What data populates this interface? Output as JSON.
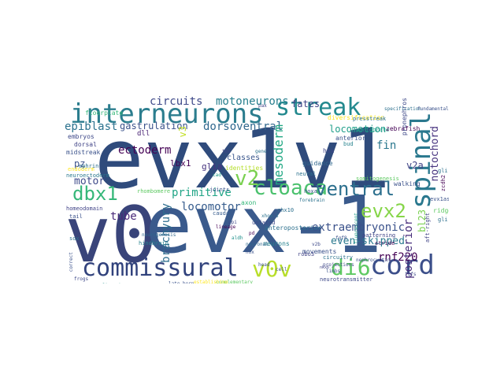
{
  "palette": [
    "#440154",
    "#3b528b",
    "#21918c",
    "#5ec962",
    "#fde725"
  ],
  "words": [
    {
      "text": "evx1v1",
      "color": "#2f4b7c"
    },
    {
      "text": "v0",
      "color": "#39447a"
    },
    {
      "text": "evx-1",
      "color": "#3a5a8c"
    },
    {
      "text": "interneurons",
      "color": "#2b7d8e"
    },
    {
      "text": "streak",
      "color": "#23898e"
    },
    {
      "text": "spinal",
      "color": "#2a788e"
    },
    {
      "text": "commissural",
      "color": "#31427c"
    },
    {
      "text": "v0v",
      "color": "#b8de29"
    },
    {
      "text": "di6",
      "color": "#5ec962"
    },
    {
      "text": "cord",
      "color": "#3c4f8a"
    },
    {
      "text": "cloaca",
      "color": "#4ac16d"
    },
    {
      "text": "ventral",
      "color": "#2d708e"
    },
    {
      "text": "dbx1",
      "color": "#35b779"
    },
    {
      "text": "evx2",
      "color": "#86d549"
    },
    {
      "text": "v2",
      "color": "#7ad151"
    },
    {
      "text": "motoneurons",
      "color": "#277f8e"
    },
    {
      "text": "circuits",
      "color": "#3e4989"
    },
    {
      "text": "fates",
      "color": "#414487"
    },
    {
      "text": "epiblast",
      "color": "#2c728e"
    },
    {
      "text": "gastrulation",
      "color": "#3b528b"
    },
    {
      "text": "dorsoventral",
      "color": "#31688e"
    },
    {
      "text": "locomotion",
      "color": "#1f9e89"
    },
    {
      "text": "mesoderm",
      "color": "#22a884"
    },
    {
      "text": "notochord",
      "color": "#46327e"
    },
    {
      "text": "ectoderm",
      "color": "#440154"
    },
    {
      "text": "motor",
      "color": "#3e4a89"
    },
    {
      "text": "fin",
      "color": "#2a778e"
    },
    {
      "text": "v2a",
      "color": "#414487"
    },
    {
      "text": "primitive",
      "color": "#20a486"
    },
    {
      "text": "locomotor",
      "color": "#365c8d"
    },
    {
      "text": "brachyury",
      "color": "#2e6e8e"
    },
    {
      "text": "extraembryonic",
      "color": "#3b528b"
    },
    {
      "text": "even-skipped",
      "color": "#2a788e"
    },
    {
      "text": "rnf220",
      "color": "#440154"
    },
    {
      "text": "posterior",
      "color": "#472d7b"
    },
    {
      "text": "tube",
      "color": "#482878"
    },
    {
      "text": "bl23",
      "color": "#7ad151"
    },
    {
      "text": "pz",
      "color": "#3b528b"
    },
    {
      "text": "v3",
      "color": "#c2df23"
    },
    {
      "text": "lbx1",
      "color": "#440154"
    },
    {
      "text": "glia",
      "color": "#46337f"
    },
    {
      "text": "dll",
      "color": "#482173"
    },
    {
      "text": "classes",
      "color": "#39568c"
    },
    {
      "text": "identities",
      "color": "#b5de2b"
    },
    {
      "text": "embryos",
      "color": "#3e4989"
    },
    {
      "text": "dorsal",
      "color": "#414487"
    },
    {
      "text": "midstreak",
      "color": "#3b528b"
    },
    {
      "text": "hox",
      "color": "#404688"
    },
    {
      "text": "axon",
      "color": "#35b779"
    },
    {
      "text": "neurons",
      "color": "#26828e"
    },
    {
      "text": "diversification",
      "color": "#fde725"
    },
    {
      "text": "guidance",
      "color": "#31688e"
    },
    {
      "text": "neural",
      "color": "#2c728e"
    },
    {
      "text": "anterior",
      "color": "#3b528b"
    },
    {
      "text": "vertebrate",
      "color": "#1f9e89"
    },
    {
      "text": "zebrafish",
      "color": "#440154"
    },
    {
      "text": "presstreak",
      "color": "#2d708e"
    },
    {
      "text": "pronephros",
      "color": "#3e4989"
    },
    {
      "text": "somitogenesis",
      "color": "#5ec962"
    },
    {
      "text": "walking",
      "color": "#3b528b"
    },
    {
      "text": "patterning",
      "color": "#414487"
    },
    {
      "text": "circuitry",
      "color": "#2c728e"
    },
    {
      "text": "movements",
      "color": "#3b528b"
    },
    {
      "text": "anteroposterior",
      "color": "#2d708e"
    },
    {
      "text": "neurotransmitter",
      "color": "#3e4989"
    },
    {
      "text": "floorplate",
      "color": "#35b779"
    },
    {
      "text": "endoderm",
      "color": "#fde725"
    },
    {
      "text": "neuroectoderm",
      "color": "#2a788e"
    },
    {
      "text": "homeodomain",
      "color": "#414487"
    },
    {
      "text": "tail",
      "color": "#3b528b"
    },
    {
      "text": "hindbrain",
      "color": "#26828e"
    },
    {
      "text": "caudal",
      "color": "#365c8d"
    },
    {
      "text": "joints",
      "color": "#3b528b"
    },
    {
      "text": "rhombomere",
      "color": "#5ec962"
    },
    {
      "text": "neurogenesis",
      "color": "#31688e"
    },
    {
      "text": "forebrain",
      "color": "#2c728e"
    },
    {
      "text": "projections",
      "color": "#3e4989"
    },
    {
      "text": "stride",
      "color": "#440154"
    },
    {
      "text": "limbs",
      "color": "#3b528b"
    },
    {
      "text": "nkx6",
      "color": "#414487"
    },
    {
      "text": "v2b",
      "color": "#3e4989"
    },
    {
      "text": "chx10",
      "color": "#2d708e"
    },
    {
      "text": "fgf8",
      "color": "#3b528b"
    },
    {
      "text": "nephrocystin",
      "color": "#3b528b"
    },
    {
      "text": "fluorescent",
      "color": "#1f9e89"
    },
    {
      "text": "zcdh2",
      "color": "#440154"
    },
    {
      "text": "evx1as",
      "color": "#3b528b"
    },
    {
      "text": "aft-right",
      "color": "#414487"
    },
    {
      "text": "gli",
      "color": "#2c728e"
    },
    {
      "text": "ridge",
      "color": "#5ec962"
    },
    {
      "text": "unfated",
      "color": "#3e4989"
    },
    {
      "text": "gli",
      "color": "#2d708e"
    },
    {
      "text": "hoxa",
      "color": "#3b528b"
    },
    {
      "text": "bud",
      "color": "#26828e"
    },
    {
      "text": "robo3",
      "color": "#414487"
    },
    {
      "text": "sox",
      "color": "#2c728e"
    },
    {
      "text": "correct",
      "color": "#3b528b"
    },
    {
      "text": "configuring",
      "color": "#21918c"
    },
    {
      "text": "frogs",
      "color": "#3e4989"
    },
    {
      "text": "complementary",
      "color": "#5ec962"
    },
    {
      "text": "establishing",
      "color": "#fde725"
    },
    {
      "text": "late-born",
      "color": "#3b528b"
    },
    {
      "text": "lineage",
      "color": "#440154"
    },
    {
      "text": "specification",
      "color": "#2d708e"
    },
    {
      "text": "fundamental",
      "color": "#3b528b"
    },
    {
      "text": "tbx",
      "color": "#414487"
    },
    {
      "text": "gene",
      "color": "#2c728e"
    },
    {
      "text": "cell",
      "color": "#3b528b"
    },
    {
      "text": "neuronal",
      "color": "#31688e"
    },
    {
      "text": "fgfs",
      "color": "#3e4989"
    },
    {
      "text": "ephrin",
      "color": "#2d708e"
    },
    {
      "text": "cad",
      "color": "#1f9e89"
    },
    {
      "text": "pd",
      "color": "#440154"
    },
    {
      "text": "hox",
      "color": "#3b528b"
    },
    {
      "text": "xhox-3",
      "color": "#2c728e"
    },
    {
      "text": "pax",
      "color": "#414487"
    },
    {
      "text": "ppi",
      "color": "#3e4989"
    },
    {
      "text": "aldh",
      "color": "#21918c"
    },
    {
      "text": "head",
      "color": "#3b528b"
    }
  ]
}
